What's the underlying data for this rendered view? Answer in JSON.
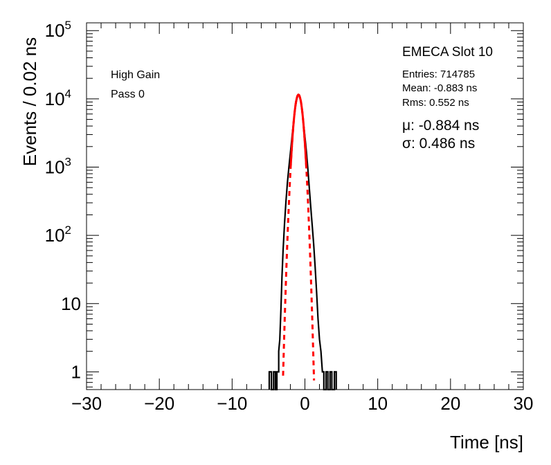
{
  "chart_data": {
    "type": "line",
    "xlabel": "Time [ns]",
    "ylabel": "Events / 0.02 ns",
    "xlim": [
      -30,
      30
    ],
    "ylim": [
      0.55,
      130000
    ],
    "yscale": "log",
    "x_ticks": [
      {
        "value": -30,
        "label": "−30"
      },
      {
        "value": -20,
        "label": "−20"
      },
      {
        "value": -10,
        "label": "−10"
      },
      {
        "value": 0,
        "label": "0"
      },
      {
        "value": 10,
        "label": "10"
      },
      {
        "value": 20,
        "label": "20"
      },
      {
        "value": 30,
        "label": "30"
      }
    ],
    "y_ticks": [
      {
        "value": 1,
        "label": "1"
      },
      {
        "value": 10,
        "label": "10"
      },
      {
        "value": 100,
        "base": "10",
        "exp": "2"
      },
      {
        "value": 1000,
        "base": "10",
        "exp": "3"
      },
      {
        "value": 10000,
        "base": "10",
        "exp": "4"
      },
      {
        "value": 100000,
        "base": "10",
        "exp": "5"
      }
    ],
    "grid": false,
    "labels": {
      "gain": "High Gain",
      "pass": "Pass 0",
      "title": "EMECA Slot 10",
      "entries": "Entries: 714785",
      "mean": "Mean: -0.883 ns",
      "rms": "Rms: 0.552 ns",
      "mu": "μ: -0.884 ns",
      "sigma": "σ: 0.486 ns"
    },
    "histogram": {
      "color": "#000000",
      "points": [
        [
          -4.9,
          0.55
        ],
        [
          -4.9,
          1
        ],
        [
          -4.6,
          1
        ],
        [
          -4.6,
          0.55
        ],
        [
          -4.3,
          0.55
        ],
        [
          -4.3,
          1
        ],
        [
          -4.05,
          1
        ],
        [
          -4.05,
          0.55
        ],
        [
          -3.85,
          0.55
        ],
        [
          -3.85,
          1
        ],
        [
          -3.6,
          1
        ],
        [
          -3.6,
          2
        ],
        [
          -3.45,
          3
        ],
        [
          -3.3,
          8
        ],
        [
          -3.15,
          25
        ],
        [
          -3.0,
          60
        ],
        [
          -2.8,
          150
        ],
        [
          -2.6,
          320
        ],
        [
          -2.4,
          600
        ],
        [
          -2.2,
          1000
        ],
        [
          -2.0,
          1600
        ],
        [
          -1.8,
          2600
        ],
        [
          -1.6,
          4200
        ],
        [
          -1.4,
          6500
        ],
        [
          -1.2,
          9000
        ],
        [
          -1.0,
          11000
        ],
        [
          -0.9,
          11500
        ],
        [
          -0.8,
          11200
        ],
        [
          -0.6,
          9500
        ],
        [
          -0.4,
          6800
        ],
        [
          -0.2,
          4500
        ],
        [
          0.0,
          2800
        ],
        [
          0.2,
          1700
        ],
        [
          0.4,
          950
        ],
        [
          0.6,
          500
        ],
        [
          0.8,
          260
        ],
        [
          1.0,
          140
        ],
        [
          1.2,
          75
        ],
        [
          1.4,
          35
        ],
        [
          1.6,
          15
        ],
        [
          1.8,
          6
        ],
        [
          2.0,
          3
        ],
        [
          2.2,
          2
        ],
        [
          2.4,
          1
        ],
        [
          2.6,
          1
        ],
        [
          2.6,
          0.55
        ],
        [
          2.9,
          0.55
        ],
        [
          2.9,
          1
        ],
        [
          3.15,
          1
        ],
        [
          3.15,
          0.55
        ],
        [
          3.45,
          0.55
        ],
        [
          3.45,
          1
        ],
        [
          3.7,
          1
        ],
        [
          3.7,
          0.55
        ],
        [
          4.05,
          0.55
        ],
        [
          4.05,
          1
        ],
        [
          4.3,
          1
        ],
        [
          4.3,
          0.55
        ]
      ]
    },
    "fit": {
      "type": "gaussian",
      "color": "#ff0000",
      "amplitude": 11500,
      "mean": -0.884,
      "sigma": 0.486,
      "solid_range": [
        -1.95,
        0.2
      ],
      "dashed_range": [
        -3.0,
        1.25
      ]
    }
  }
}
